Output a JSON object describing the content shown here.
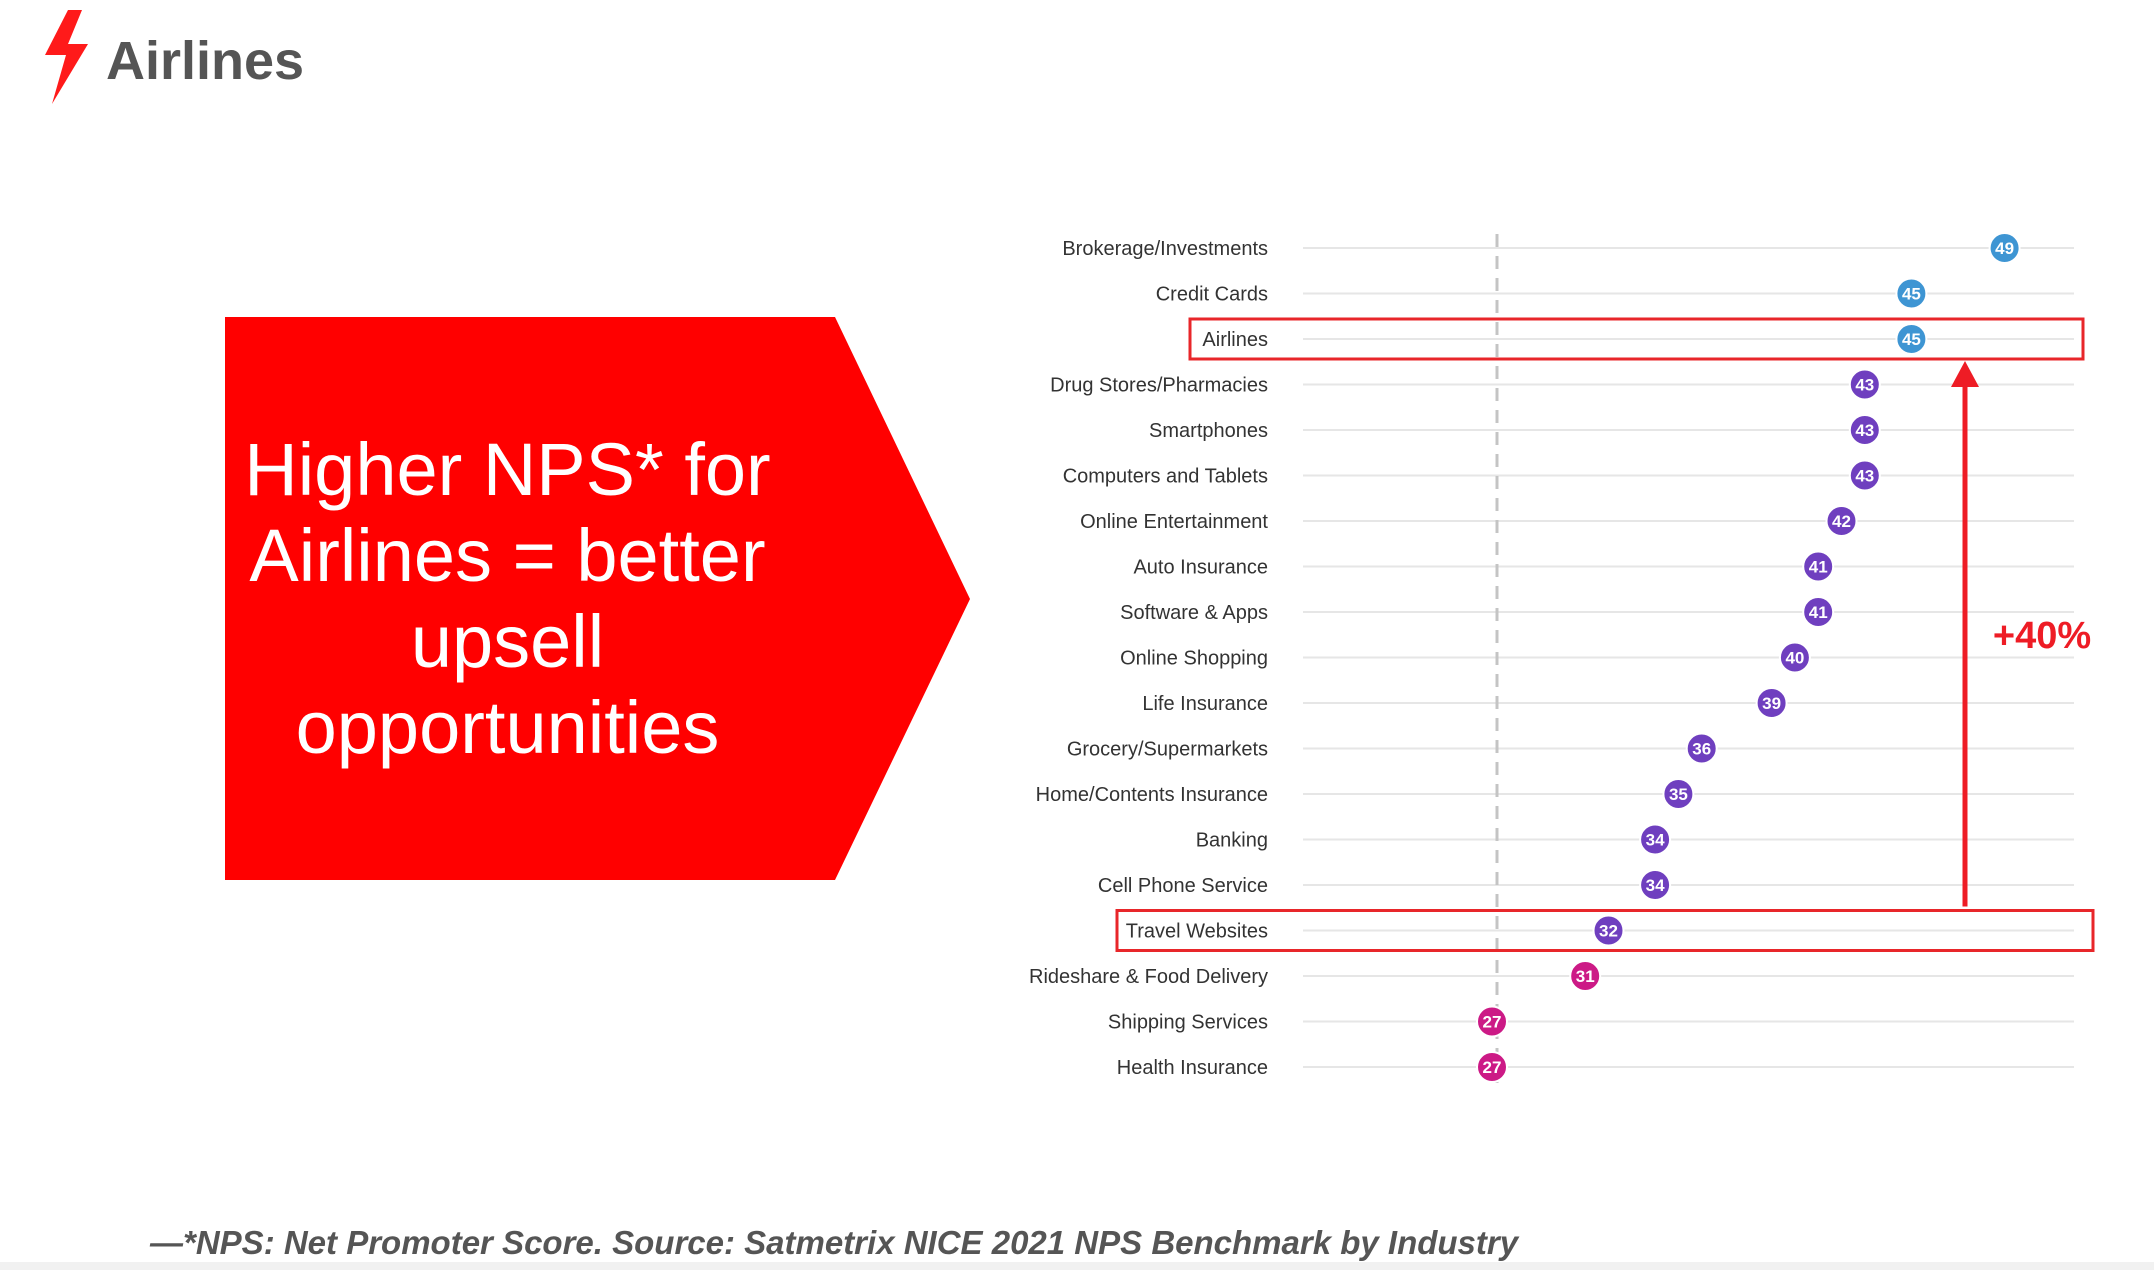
{
  "header": {
    "title": "Airlines",
    "icon": "lightning-bolt-icon",
    "accent": "#ff1a1a"
  },
  "callout": {
    "lines": [
      "Higher NPS* for",
      "Airlines = better",
      "upsell opportunities"
    ],
    "color": "#ff0000"
  },
  "chart_data": {
    "type": "scatter",
    "title": "",
    "xlabel": "",
    "ylabel": "",
    "reference_line": "dashed vertical line",
    "categories": [
      "Brokerage/Investments",
      "Credit Cards",
      "Airlines",
      "Drug Stores/Pharmacies",
      "Smartphones",
      "Computers and Tablets",
      "Online Entertainment",
      "Auto Insurance",
      "Software & Apps",
      "Online Shopping",
      "Life Insurance",
      "Grocery/Supermarkets",
      "Home/Contents Insurance",
      "Banking",
      "Cell Phone Service",
      "Travel Websites",
      "Rideshare & Food Delivery",
      "Shipping Services",
      "Health Insurance"
    ],
    "values": [
      49,
      45,
      45,
      43,
      43,
      43,
      42,
      41,
      41,
      40,
      39,
      36,
      35,
      34,
      34,
      32,
      31,
      27,
      27
    ],
    "colors": {
      "high": "#3e95d3",
      "mid": "#6f3fbf",
      "low": "#cc1a86"
    },
    "highlighted": [
      "Airlines",
      "Travel Websites"
    ],
    "highlight_color": "#e8262a",
    "annotation": {
      "text": "+40%",
      "from": "Travel Websites",
      "to": "Airlines",
      "color": "#ee1c25"
    }
  },
  "footnote": "—*NPS: Net Promoter Score. Source: Satmetrix NICE 2021 NPS Benchmark by Industry"
}
